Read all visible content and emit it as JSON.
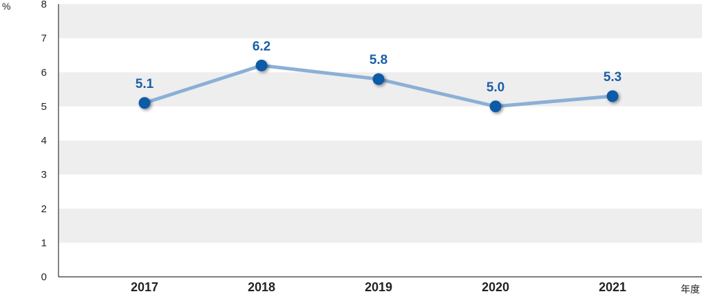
{
  "chart_data": {
    "type": "line",
    "categories": [
      "2017",
      "2018",
      "2019",
      "2020",
      "2021"
    ],
    "series": [
      {
        "values": [
          5.1,
          6.2,
          5.8,
          5.0,
          5.3
        ]
      }
    ],
    "data_labels": [
      "5.1",
      "6.2",
      "5.8",
      "5.0",
      "5.3"
    ],
    "yticks": [
      "0",
      "1",
      "2",
      "3",
      "4",
      "5",
      "6",
      "7",
      "8"
    ],
    "ylim": [
      0,
      8
    ],
    "ylabel": "%",
    "xlabel": "年度",
    "grid": "alternating horizontal bands",
    "colors": {
      "line": "#8bb0d6",
      "marker": "#0d5aa7",
      "label": "#1a5ea8",
      "band": "#eeeeee",
      "axis": "#333333"
    }
  }
}
